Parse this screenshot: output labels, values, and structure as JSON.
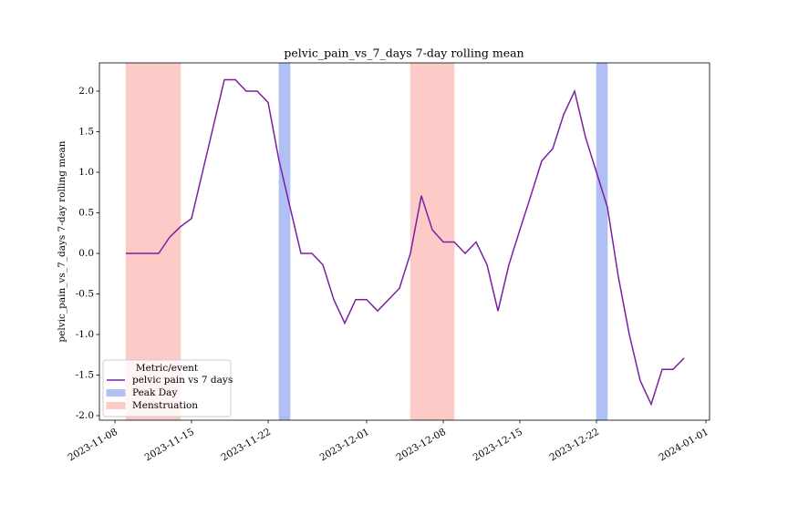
{
  "chart_data": {
    "type": "line",
    "title": "pelvic_pain_vs_7_days 7-day rolling mean",
    "y_label": "pelvic_pain_vs_7_days 7-day rolling mean",
    "x": [
      "2023-11-09",
      "2023-11-10",
      "2023-11-11",
      "2023-11-12",
      "2023-11-13",
      "2023-11-14",
      "2023-11-15",
      "2023-11-16",
      "2023-11-17",
      "2023-11-18",
      "2023-11-19",
      "2023-11-20",
      "2023-11-21",
      "2023-11-22",
      "2023-11-23",
      "2023-11-24",
      "2023-11-25",
      "2023-11-26",
      "2023-11-27",
      "2023-11-28",
      "2023-11-29",
      "2023-11-30",
      "2023-12-01",
      "2023-12-02",
      "2023-12-03",
      "2023-12-04",
      "2023-12-05",
      "2023-12-06",
      "2023-12-07",
      "2023-12-08",
      "2023-12-09",
      "2023-12-10",
      "2023-12-11",
      "2023-12-12",
      "2023-12-13",
      "2023-12-14",
      "2023-12-15",
      "2023-12-16",
      "2023-12-17",
      "2023-12-18",
      "2023-12-19",
      "2023-12-20",
      "2023-12-21",
      "2023-12-22",
      "2023-12-23",
      "2023-12-24",
      "2023-12-25",
      "2023-12-26",
      "2023-12-27",
      "2023-12-28",
      "2023-12-29",
      "2023-12-30"
    ],
    "series": [
      {
        "name": "pelvic pain vs 7 days",
        "color": "#7b1fa2",
        "values": [
          0,
          0,
          0,
          0,
          0.2,
          0.33,
          0.43,
          1.0,
          1.57,
          2.14,
          2.14,
          2.0,
          2.0,
          1.86,
          1.14,
          0.57,
          0,
          0,
          -0.14,
          -0.57,
          -0.86,
          -0.57,
          -0.57,
          -0.71,
          -0.57,
          -0.43,
          0,
          0.71,
          0.29,
          0.14,
          0.14,
          0,
          0.14,
          -0.14,
          -0.71,
          -0.14,
          0.29,
          0.71,
          1.14,
          1.29,
          1.71,
          2.0,
          1.43,
          1.0,
          0.57,
          -0.29,
          -1.0,
          -1.57,
          -1.86,
          -1.43,
          -1.43,
          -1.29
        ]
      }
    ],
    "spans": [
      {
        "name": "Menstruation",
        "color": "#fccbc7",
        "start": "2023-11-09",
        "end": "2023-11-14"
      },
      {
        "name": "Peak Day",
        "color": "#b0c0f5",
        "start": "2023-11-23",
        "end": "2023-11-24"
      },
      {
        "name": "Menstruation",
        "color": "#fccbc7",
        "start": "2023-12-05",
        "end": "2023-12-09"
      },
      {
        "name": "Peak Day",
        "color": "#b0c0f5",
        "start": "2023-12-22",
        "end": "2023-12-23"
      }
    ],
    "legend_title": "Metric/event",
    "legend_entries": [
      {
        "name": "pelvic pain vs 7 days",
        "color": "#7b1fa2",
        "kind": "line"
      },
      {
        "name": "Peak Day",
        "color": "#b0c0f5",
        "kind": "patch"
      },
      {
        "name": "Menstruation",
        "color": "#fccbc7",
        "kind": "patch"
      }
    ],
    "legend_loc": "lower left",
    "xlim": [
      "2023-11-06T14:00",
      "2024-01-01T08:00"
    ],
    "xticks": [
      "2023-11-08",
      "2023-11-15",
      "2023-11-22",
      "2023-12-01",
      "2023-12-08",
      "2023-12-15",
      "2023-12-22",
      "2024-01-01"
    ],
    "ylim": [
      -2.056,
      2.348
    ],
    "yticks": [
      {
        "value": -2,
        "label": "-2.0"
      },
      -1.5,
      {
        "value": -1,
        "label": "-1.0"
      },
      -0.5,
      {
        "value": 0,
        "label": "0.0"
      },
      0.5,
      {
        "value": 1,
        "label": "1.0"
      },
      1.5,
      {
        "value": 2,
        "label": "2.0"
      }
    ]
  }
}
